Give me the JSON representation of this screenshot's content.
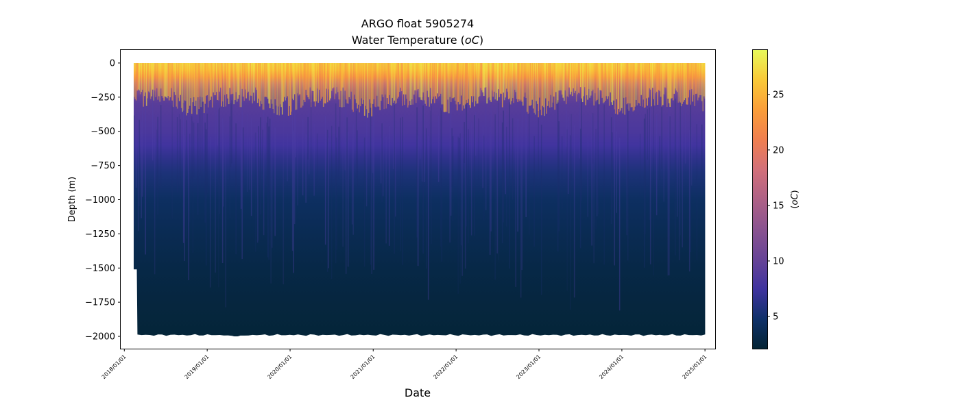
{
  "chart_data": {
    "type": "heatmap",
    "title": "ARGO float 5905274",
    "subtitle": "Water Temperature (",
    "subtitle_unit": "oC",
    "subtitle_end": ")",
    "xlabel": "Date",
    "ylabel": "Depth (m)",
    "x_range": [
      "2017-12-16",
      "2025-02-15"
    ],
    "ylim": [
      -2090,
      95
    ],
    "y_ticks": [
      0,
      -250,
      -500,
      -750,
      -1000,
      -1250,
      -1500,
      -1750,
      -2000
    ],
    "y_tick_labels": [
      "0",
      "−250",
      "−500",
      "−750",
      "−1000",
      "−1250",
      "−1500",
      "−1750",
      "−2000"
    ],
    "x_ticks": [
      "2018-01-01",
      "2019-01-01",
      "2020-01-01",
      "2021-01-01",
      "2022-01-01",
      "2023-01-01",
      "2024-01-01",
      "2025-01-01"
    ],
    "x_tick_labels": [
      "2018/01/01",
      "2019/01/01",
      "2020/01/01",
      "2021/01/01",
      "2022/01/01",
      "2023/01/01",
      "2024/01/01",
      "2025/01/01"
    ],
    "data_extent": {
      "start": "2018-02-11",
      "end": "2025-01-02",
      "surface_depth": 0,
      "max_depth_early": -1510,
      "max_depth_early_until": "2018-02-25",
      "max_depth": -1990
    },
    "temperature_profile": {
      "depths": [
        0,
        -50,
        -100,
        -150,
        -200,
        -250,
        -300,
        -400,
        -500,
        -600,
        -700,
        -800,
        -1000,
        -1250,
        -1500,
        -1750,
        -2000
      ],
      "temperatures": [
        27.5,
        26,
        22,
        16,
        12,
        10,
        9.2,
        8.7,
        8.3,
        7.6,
        6.5,
        5.6,
        4.4,
        3.7,
        3.1,
        2.7,
        2.4
      ]
    },
    "colorbar": {
      "label": "(",
      "label_unit": "oC",
      "label_end": ")",
      "range": [
        2.1,
        29.0
      ],
      "ticks": [
        5,
        10,
        15,
        20,
        25
      ],
      "tick_labels": [
        "5",
        "10",
        "15",
        "20",
        "25"
      ],
      "colormap": "thermal",
      "colors": [
        "#032333",
        "#0f3169",
        "#3f339f",
        "#674396",
        "#8a5390",
        "#ae6186",
        "#d2707a",
        "#f07f4f",
        "#fa9e39",
        "#f9c938",
        "#e8fa5b"
      ]
    },
    "grid": false,
    "legend": "none"
  }
}
